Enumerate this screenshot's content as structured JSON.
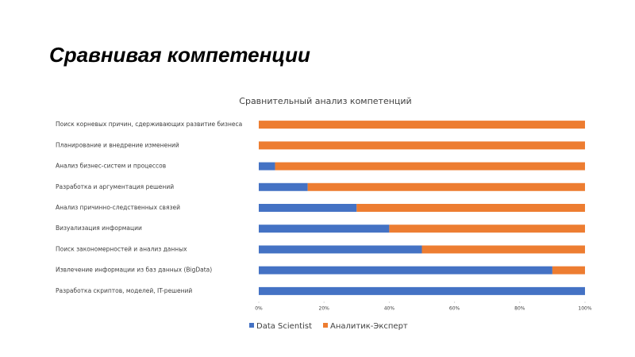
{
  "slide_title": "Сравнивая компетенции",
  "chart_data": {
    "type": "stacked_barh",
    "title": "Сравнительный анализ компетенций",
    "categories": [
      "Поиск корневых причин, сдерживающих развитие бизнеса",
      "Планирование и внедрение изменений",
      "Анализ бизнес-систем и процессов",
      "Разработка и аргументация решений",
      "Анализ причинно-следственных связей",
      "Визуализация информации",
      "Поиск закономерностей и анализ данных",
      "Извлечение информации из баз данных (BigData)",
      "Разработка скриптов, моделей, IT-решений"
    ],
    "series": [
      {
        "name": "Data Scientist",
        "color": "#4472c4",
        "values": [
          0,
          0,
          5,
          15,
          30,
          40,
          50,
          90,
          100
        ]
      },
      {
        "name": "Аналитик-Эксперт",
        "color": "#ed7d31",
        "values": [
          100,
          100,
          95,
          85,
          70,
          60,
          50,
          10,
          0
        ]
      }
    ],
    "xlim": [
      0,
      100
    ],
    "xticks": [
      {
        "value": 0,
        "label": "0%"
      },
      {
        "value": 20,
        "label": "20%"
      },
      {
        "value": 40,
        "label": "40%"
      },
      {
        "value": 60,
        "label": "60%"
      },
      {
        "value": 80,
        "label": "80%"
      },
      {
        "value": 100,
        "label": "100%"
      }
    ],
    "legend": "bottom"
  }
}
